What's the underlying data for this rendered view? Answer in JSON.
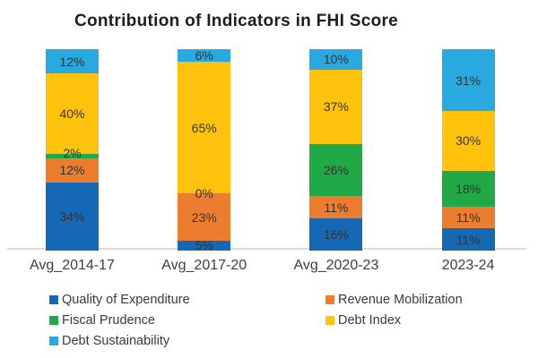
{
  "title": "Contribution of Indicators in FHI Score",
  "chart_data": {
    "type": "bar",
    "stacked": true,
    "orientation": "vertical",
    "title": "Contribution of Indicators in FHI Score",
    "categories": [
      "Avg_2014-17",
      "Avg_2017-20",
      "Avg_2020-23",
      "2023-24"
    ],
    "series": [
      {
        "name": "Quality of Expenditure",
        "color": "#1568B3",
        "values": [
          34,
          5,
          16,
          11
        ]
      },
      {
        "name": "Revenue Mobilization",
        "color": "#ED7D2E",
        "values": [
          12,
          23,
          11,
          11
        ]
      },
      {
        "name": "Fiscal Prudence",
        "color": "#21A947",
        "values": [
          2,
          0,
          26,
          18
        ]
      },
      {
        "name": "Debt Index",
        "color": "#FFC20D",
        "values": [
          40,
          65,
          37,
          30
        ]
      },
      {
        "name": "Debt Sustainability",
        "color": "#2AA9E0",
        "values": [
          12,
          6,
          10,
          31
        ]
      }
    ],
    "value_suffix": "%",
    "data_labels": true,
    "ylim": [
      0,
      100
    ],
    "grid": false,
    "baseline_color": "#dcdcdc",
    "legend_position": "bottom",
    "legend_columns": 2
  }
}
